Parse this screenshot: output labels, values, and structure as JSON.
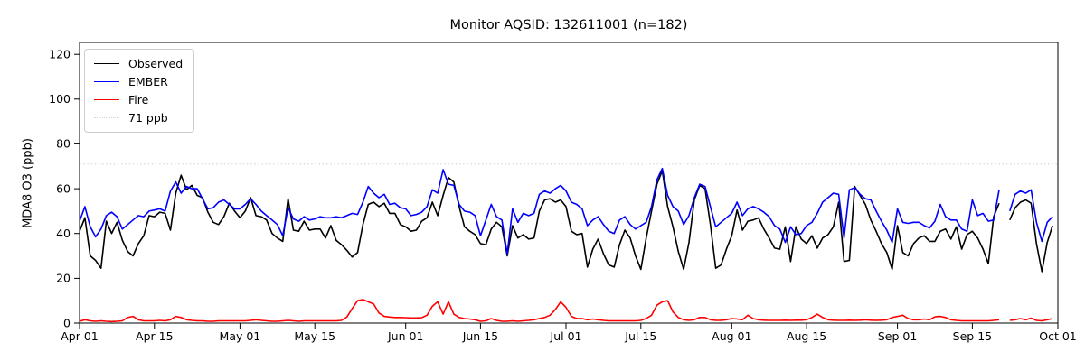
{
  "title": "Monitor AQSID: 132611001 (n=182)",
  "y_axis": {
    "label": "MDA8 O3 (ppb)",
    "ticks": [
      0,
      20,
      40,
      60,
      80,
      100,
      120
    ],
    "range": [
      0,
      125.3
    ]
  },
  "x_axis": {
    "ticks": [
      {
        "day": 0,
        "label": "Apr 01"
      },
      {
        "day": 14,
        "label": "Apr 15"
      },
      {
        "day": 30,
        "label": "May 01"
      },
      {
        "day": 44,
        "label": "May 15"
      },
      {
        "day": 61,
        "label": "Jun 01"
      },
      {
        "day": 75,
        "label": "Jun 15"
      },
      {
        "day": 91,
        "label": "Jul 01"
      },
      {
        "day": 105,
        "label": "Jul 15"
      },
      {
        "day": 122,
        "label": "Aug 01"
      },
      {
        "day": 136,
        "label": "Aug 15"
      },
      {
        "day": 153,
        "label": "Sep 01"
      },
      {
        "day": 167,
        "label": "Sep 15"
      },
      {
        "day": 183,
        "label": "Oct 01"
      }
    ]
  },
  "legend": {
    "items": [
      {
        "label": "Observed",
        "color": "#000000",
        "style": "solid"
      },
      {
        "label": "EMBER",
        "color": "#0000ff",
        "style": "solid"
      },
      {
        "label": "Fire",
        "color": "#ff0000",
        "style": "solid"
      },
      {
        "label": "71 ppb",
        "color": "#d3d3d3",
        "style": "dotted"
      }
    ]
  },
  "chart_data": {
    "type": "line",
    "title": "Monitor AQSID: 132611001 (n=182)",
    "xlabel": "",
    "ylabel": "MDA8 O3 (ppb)",
    "ylim": [
      0,
      125.3
    ],
    "x_start": "Apr 01",
    "x_end": "Sep 30",
    "frequency": "daily",
    "missing_day": "Sep 21",
    "threshold": {
      "label": "71 ppb",
      "value": 71,
      "color": "#d3d3d3"
    },
    "series": [
      {
        "name": "Observed",
        "color": "#000000",
        "values": [
          41,
          47,
          30,
          28,
          24.5,
          45.5,
          40,
          45,
          37,
          32,
          30,
          35.5,
          39,
          48,
          47.5,
          49.5,
          49,
          41.5,
          58,
          66,
          59.5,
          61.5,
          57,
          56,
          49.5,
          45,
          44,
          47.5,
          53.5,
          50,
          47,
          50,
          56,
          48,
          47.5,
          46,
          40,
          38,
          36.5,
          55.5,
          41.5,
          41,
          45.5,
          41.5,
          42,
          42,
          38,
          43.5,
          37,
          35,
          32.5,
          29.5,
          31.5,
          44,
          53,
          54,
          52,
          53.5,
          49,
          49,
          44,
          43,
          41,
          41.5,
          45.5,
          47,
          54,
          48,
          57,
          65,
          63,
          52,
          43,
          41,
          39.5,
          35.5,
          35,
          42,
          45,
          43,
          30,
          43.5,
          38,
          39.5,
          37.5,
          38,
          50,
          55,
          55.5,
          54,
          55,
          52,
          41,
          39.5,
          40,
          25,
          33,
          37.5,
          31,
          26,
          25,
          35,
          41.5,
          38,
          30,
          24,
          38,
          50,
          62,
          68,
          52,
          43,
          32,
          24,
          36,
          55,
          61.5,
          60,
          44,
          24.5,
          26,
          33,
          39,
          50.5,
          41.5,
          45.5,
          46,
          47,
          42,
          38,
          33.5,
          33,
          43,
          27.5,
          43,
          37.5,
          35.5,
          39,
          33.5,
          38,
          39.5,
          43,
          54,
          27.5,
          28,
          61,
          57,
          53,
          46,
          41,
          35.5,
          31.5,
          24,
          43.5,
          31.5,
          30,
          35.5,
          38,
          39,
          36.5,
          36.5,
          41,
          42,
          37.5,
          43,
          33,
          39.5,
          41,
          38,
          33,
          26.5,
          47.5,
          53.5,
          null,
          46,
          51.5,
          54,
          55,
          53.5,
          35.5,
          23,
          36,
          43.5
        ]
      },
      {
        "name": "EMBER",
        "color": "#0000ff",
        "values": [
          45.5,
          52,
          43,
          38.5,
          42,
          48,
          49.5,
          47.5,
          42,
          44,
          46,
          48,
          47.5,
          50,
          50.5,
          51,
          50,
          59,
          63,
          58,
          61,
          60,
          60,
          55.5,
          51,
          51.5,
          54,
          55,
          53,
          51,
          51,
          53,
          55.5,
          53,
          50,
          48,
          46,
          44,
          39,
          51.5,
          46.5,
          45.5,
          47.5,
          46,
          46.5,
          47.5,
          47,
          47,
          47.5,
          47,
          48,
          49,
          48.5,
          54,
          61,
          58,
          56,
          57.5,
          53,
          53.5,
          51.5,
          51,
          48,
          48.5,
          49.5,
          52,
          59.5,
          58,
          68.5,
          62,
          61.5,
          53,
          50,
          49.5,
          48,
          39,
          46,
          53,
          47.5,
          46,
          31,
          51,
          45,
          49,
          48,
          49,
          57.5,
          59,
          58,
          60,
          61.5,
          59,
          54,
          53,
          51,
          43.5,
          46,
          47.5,
          44,
          41,
          40,
          46,
          47.5,
          44,
          42,
          43.5,
          45,
          52,
          64,
          69,
          57,
          52,
          50,
          44,
          48,
          56,
          62,
          61,
          52,
          43,
          45,
          47,
          49,
          54,
          48,
          51,
          52,
          51,
          49.5,
          47.5,
          43.5,
          42,
          36,
          43,
          39.5,
          40,
          43.5,
          45,
          49,
          54,
          56,
          58,
          57.5,
          38,
          59.5,
          60.5,
          57.5,
          55.5,
          55,
          50,
          45.5,
          41.5,
          36,
          51,
          45,
          44.5,
          45,
          45,
          43.5,
          42.5,
          45.5,
          53,
          47.5,
          46,
          46,
          42,
          41,
          55,
          48,
          49,
          45.5,
          46,
          59.5,
          null,
          50,
          57.5,
          59,
          58,
          59.5,
          45,
          36.5,
          45,
          47.5
        ]
      },
      {
        "name": "Fire",
        "color": "#ff0000",
        "values": [
          0.8,
          1.5,
          1,
          0.8,
          1,
          0.8,
          0.7,
          0.8,
          1,
          2.5,
          3,
          1.5,
          1,
          1,
          1,
          1.2,
          1,
          1.5,
          3,
          2.5,
          1.5,
          1.2,
          1,
          1,
          0.8,
          0.8,
          1,
          1,
          1,
          1,
          1,
          1,
          1.2,
          1.5,
          1.2,
          1,
          0.8,
          0.8,
          1,
          1.2,
          1,
          0.8,
          1,
          1,
          1,
          1,
          1,
          1,
          1,
          1.2,
          2.7,
          6.5,
          10,
          10.5,
          9.5,
          8.5,
          4.5,
          3,
          2.7,
          2.5,
          2.5,
          2.4,
          2.3,
          2.3,
          2.4,
          3.5,
          7.5,
          9.5,
          4,
          9.5,
          4,
          2.5,
          2,
          1.8,
          1.5,
          0.8,
          1,
          2,
          1.2,
          0.8,
          0.8,
          1,
          0.8,
          1,
          1.2,
          1.5,
          2,
          2.5,
          3.5,
          6,
          9.5,
          7,
          3,
          2,
          2,
          1.5,
          1.8,
          1.5,
          1.2,
          1,
          1,
          1,
          1,
          1,
          1,
          1.2,
          2,
          3.5,
          8,
          9.5,
          10,
          5,
          2.5,
          1.5,
          1.2,
          1.5,
          2.5,
          2.5,
          1.5,
          1.2,
          1.2,
          1.5,
          2,
          1.8,
          1.5,
          3.5,
          2,
          1.5,
          1.3,
          1.2,
          1.2,
          1.2,
          1.3,
          1.2,
          1.3,
          1.3,
          1.5,
          2.5,
          4,
          2.5,
          1.5,
          1.3,
          1.2,
          1.2,
          1.3,
          1.2,
          1.3,
          1.5,
          1.3,
          1.2,
          1.3,
          1.5,
          2.5,
          3,
          3.5,
          2,
          1.5,
          1.5,
          1.8,
          1.5,
          2.8,
          3,
          2.5,
          1.5,
          1.2,
          1,
          1,
          1,
          1,
          1,
          1,
          1.2,
          1.5,
          null,
          1.2,
          1.5,
          2,
          1.5,
          2.2,
          1.2,
          1,
          1.5,
          2
        ]
      }
    ],
    "legend_position": "upper left",
    "grid": false
  }
}
